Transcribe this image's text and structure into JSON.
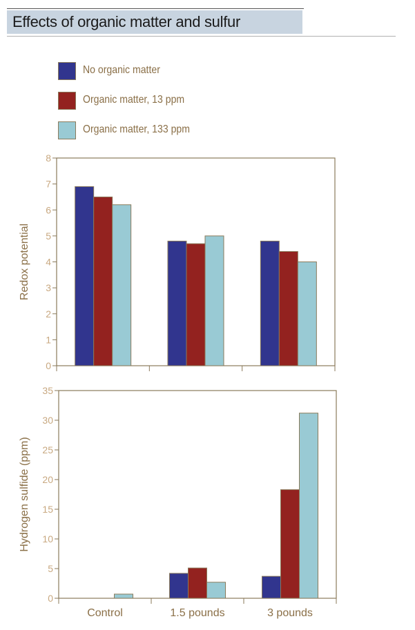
{
  "header": {
    "title": "Effects of organic matter and sulfur"
  },
  "legend": [
    {
      "label": "No organic matter",
      "color": "#31358e"
    },
    {
      "label": "Organic matter, 13 ppm",
      "color": "#93221f"
    },
    {
      "label": "Organic matter, 133 ppm",
      "color": "#99cad4"
    }
  ],
  "chart_data": [
    {
      "type": "bar",
      "title": "",
      "categories": [
        "Control",
        "1.5 pounds",
        "3 pounds"
      ],
      "ylabel": "Redox potential",
      "xlabel": "",
      "ylim": [
        0,
        8
      ],
      "yticks": [
        "0",
        "1",
        "2",
        "3",
        "4",
        "5",
        "6",
        "7",
        "8"
      ],
      "series": [
        {
          "name": "No organic matter",
          "values": [
            6.9,
            4.8,
            4.8
          ]
        },
        {
          "name": "Organic matter, 13 ppm",
          "values": [
            6.5,
            4.7,
            4.4
          ]
        },
        {
          "name": "Organic matter, 133 ppm",
          "values": [
            6.2,
            5.0,
            4.0
          ]
        }
      ],
      "grid": false,
      "legend_position": "top"
    },
    {
      "type": "bar",
      "title": "",
      "categories": [
        "Control",
        "1.5 pounds",
        "3 pounds"
      ],
      "ylabel": "Hydrogen sulfide (ppm)",
      "xlabel": "",
      "ylim": [
        0,
        35
      ],
      "yticks": [
        "0",
        "5",
        "10",
        "15",
        "20",
        "25",
        "30",
        "35"
      ],
      "series": [
        {
          "name": "No organic matter",
          "values": [
            0,
            4.2,
            3.7
          ]
        },
        {
          "name": "Organic matter, 13 ppm",
          "values": [
            0,
            5.1,
            18.3
          ]
        },
        {
          "name": "Organic matter, 133 ppm",
          "values": [
            0.7,
            2.7,
            31.2
          ]
        }
      ],
      "grid": false,
      "legend_position": "top"
    }
  ]
}
